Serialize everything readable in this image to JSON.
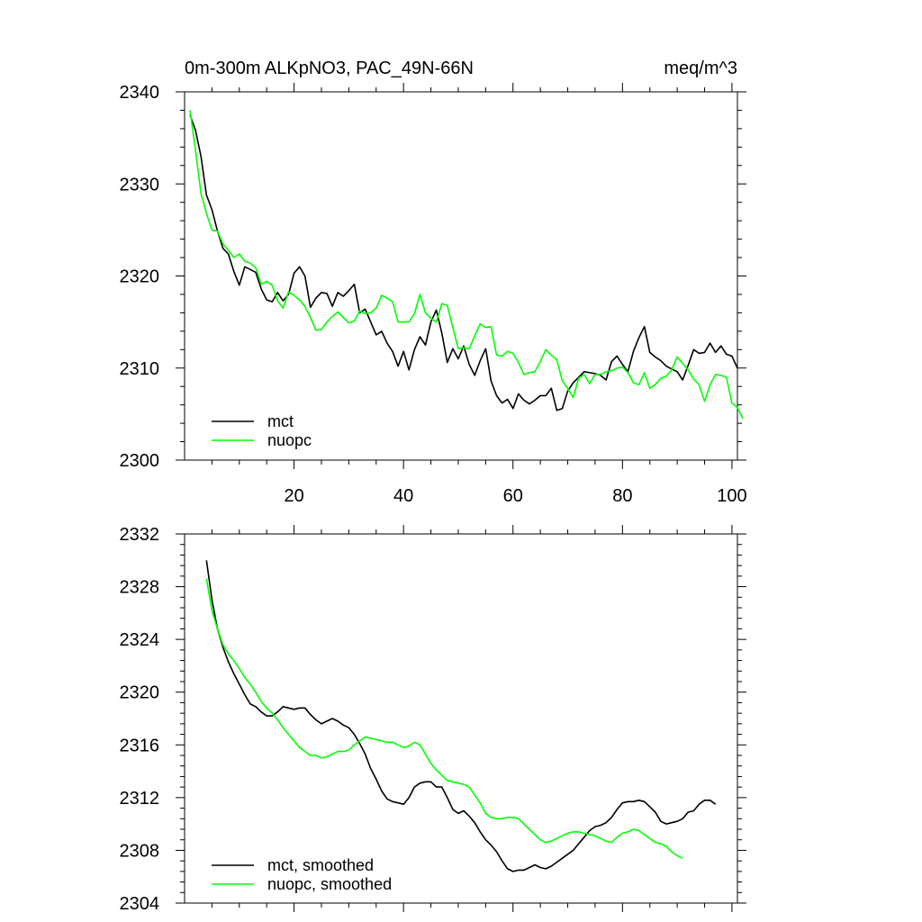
{
  "chart_data": [
    {
      "type": "line",
      "title": "0m-300m ALKpNO3, PAC_49N-66N",
      "units": "meq/m^3",
      "xlim": [
        0,
        101
      ],
      "ylim": [
        2300,
        2340
      ],
      "xticks": [
        20,
        40,
        60,
        80,
        100
      ],
      "xtick_labels": [
        "20",
        "40",
        "60",
        "80",
        "100"
      ],
      "yticks": [
        2300,
        2310,
        2320,
        2330,
        2340
      ],
      "ytick_labels": [
        "2300",
        "2310",
        "2320",
        "2330",
        "2340"
      ],
      "legend_position": "bottom-left",
      "series": [
        {
          "name": "mct",
          "color": "#000000",
          "x_start": 1,
          "values": [
            2337.5,
            2335.8,
            2333.0,
            2328.8,
            2327.2,
            2324.9,
            2323.0,
            2322.4,
            2320.5,
            2319.0,
            2321.0,
            2320.7,
            2320.4,
            2318.6,
            2317.4,
            2317.2,
            2318.2,
            2317.3,
            2318.0,
            2320.3,
            2321.0,
            2320.0,
            2316.6,
            2317.6,
            2318.2,
            2318.1,
            2316.7,
            2318.2,
            2317.8,
            2318.4,
            2319.1,
            2316.0,
            2316.4,
            2315.0,
            2313.6,
            2314.0,
            2312.7,
            2311.8,
            2310.2,
            2311.8,
            2309.8,
            2312.0,
            2313.4,
            2312.5,
            2315.0,
            2316.3,
            2313.8,
            2310.6,
            2312.1,
            2311.0,
            2312.4,
            2310.4,
            2309.2,
            2310.8,
            2312.1,
            2308.6,
            2307.0,
            2306.2,
            2306.6,
            2305.6,
            2307.2,
            2306.5,
            2306.1,
            2306.5,
            2307.0,
            2307.0,
            2307.8,
            2305.4,
            2305.6,
            2307.5,
            2308.4,
            2309.0,
            2309.6,
            2309.5,
            2309.4,
            2309.2,
            2308.7,
            2310.7,
            2311.3,
            2310.4,
            2309.6,
            2311.8,
            2313.3,
            2314.5,
            2311.7,
            2311.2,
            2310.8,
            2310.2,
            2309.9,
            2309.6,
            2308.7,
            2310.3,
            2312.0,
            2311.6,
            2311.7,
            2312.7,
            2311.7,
            2312.4,
            2311.5,
            2311.3,
            2310.0
          ]
        },
        {
          "name": "nuopc",
          "color": "#00ff00",
          "x_start": 1,
          "values": [
            2338.0,
            2333.6,
            2329.0,
            2326.8,
            2325.0,
            2324.9,
            2323.5,
            2322.8,
            2322.0,
            2322.4,
            2321.6,
            2321.4,
            2320.9,
            2319.1,
            2319.4,
            2319.0,
            2317.3,
            2316.5,
            2318.3,
            2317.9,
            2317.4,
            2316.7,
            2315.5,
            2314.1,
            2314.2,
            2315.0,
            2315.6,
            2316.1,
            2315.5,
            2314.9,
            2315.1,
            2316.2,
            2315.9,
            2316.0,
            2316.5,
            2317.9,
            2317.6,
            2317.2,
            2315.0,
            2315.0,
            2315.0,
            2315.9,
            2318.0,
            2316.0,
            2315.4,
            2315.0,
            2317.0,
            2316.8,
            2314.4,
            2312.1,
            2312.2,
            2312.1,
            2313.5,
            2314.8,
            2314.4,
            2314.5,
            2311.4,
            2311.3,
            2311.8,
            2311.6,
            2310.6,
            2309.3,
            2309.5,
            2309.6,
            2310.7,
            2312.0,
            2311.4,
            2310.9,
            2308.6,
            2307.8,
            2306.8,
            2308.9,
            2309.3,
            2308.3,
            2309.3,
            2309.3,
            2309.6,
            2309.7,
            2310.0,
            2310.1,
            2309.5,
            2308.4,
            2308.2,
            2309.5,
            2307.8,
            2308.2,
            2308.9,
            2309.1,
            2309.8,
            2311.2,
            2310.5,
            2309.8,
            2308.8,
            2308.2,
            2306.4,
            2308.2,
            2309.3,
            2309.2,
            2309.0,
            2306.2,
            2305.7,
            2304.5
          ]
        }
      ]
    },
    {
      "type": "line",
      "title": "",
      "xlim": [
        0,
        101
      ],
      "ylim": [
        2304,
        2332
      ],
      "xticks": [
        20,
        40,
        60,
        80,
        100
      ],
      "yticks": [
        2304,
        2308,
        2312,
        2316,
        2320,
        2324,
        2328,
        2332
      ],
      "ytick_labels": [
        "2304",
        "2308",
        "2312",
        "2316",
        "2320",
        "2324",
        "2328",
        "2332"
      ],
      "legend_position": "bottom-left",
      "series": [
        {
          "name": "mct, smoothed",
          "color": "#000000",
          "x_start": 4,
          "values": [
            2330.0,
            2327.0,
            2324.8,
            2323.4,
            2322.3,
            2321.4,
            2320.6,
            2319.8,
            2319.1,
            2318.9,
            2318.5,
            2318.2,
            2318.2,
            2318.5,
            2318.9,
            2318.8,
            2318.7,
            2318.8,
            2318.8,
            2318.3,
            2317.9,
            2317.6,
            2317.8,
            2318.0,
            2317.8,
            2317.5,
            2317.3,
            2316.8,
            2316.1,
            2315.3,
            2314.2,
            2313.4,
            2312.5,
            2311.9,
            2311.7,
            2311.6,
            2311.5,
            2312.0,
            2312.8,
            2313.1,
            2313.2,
            2313.2,
            2312.8,
            2312.8,
            2312.0,
            2311.1,
            2310.8,
            2311.0,
            2310.6,
            2310.1,
            2309.4,
            2308.8,
            2308.4,
            2307.9,
            2307.2,
            2306.6,
            2306.4,
            2306.5,
            2306.5,
            2306.7,
            2306.9,
            2306.7,
            2306.6,
            2306.8,
            2307.1,
            2307.4,
            2307.7,
            2308.0,
            2308.5,
            2309.0,
            2309.5,
            2309.8,
            2309.9,
            2310.1,
            2310.5,
            2311.1,
            2311.6,
            2311.7,
            2311.7,
            2311.8,
            2311.7,
            2311.3,
            2310.9,
            2310.2,
            2310.0,
            2310.1,
            2310.2,
            2310.4,
            2310.9,
            2311.0,
            2311.5,
            2311.8,
            2311.8,
            2311.5
          ]
        },
        {
          "name": "nuopc, smoothed",
          "color": "#00ff00",
          "x_start": 4,
          "values": [
            2328.6,
            2326.2,
            2324.8,
            2323.6,
            2322.9,
            2322.4,
            2321.8,
            2321.1,
            2320.6,
            2320.0,
            2319.3,
            2318.8,
            2318.4,
            2317.9,
            2317.3,
            2316.8,
            2316.3,
            2315.8,
            2315.5,
            2315.2,
            2315.2,
            2315.0,
            2315.1,
            2315.3,
            2315.5,
            2315.5,
            2315.6,
            2316.0,
            2316.3,
            2316.6,
            2316.5,
            2316.4,
            2316.3,
            2316.2,
            2316.2,
            2316.0,
            2315.8,
            2315.9,
            2316.2,
            2316.0,
            2315.3,
            2314.6,
            2314.1,
            2313.7,
            2313.3,
            2313.2,
            2313.1,
            2313.0,
            2312.8,
            2312.2,
            2311.6,
            2310.8,
            2310.5,
            2310.4,
            2310.4,
            2310.5,
            2310.5,
            2310.4,
            2310.0,
            2309.6,
            2309.2,
            2308.8,
            2308.6,
            2308.7,
            2308.9,
            2309.1,
            2309.3,
            2309.4,
            2309.4,
            2309.3,
            2309.2,
            2309.1,
            2308.9,
            2308.7,
            2308.6,
            2309.0,
            2309.3,
            2309.4,
            2309.6,
            2309.5,
            2309.2,
            2308.9,
            2308.6,
            2308.5,
            2308.3,
            2307.9,
            2307.6,
            2307.4
          ]
        }
      ]
    }
  ]
}
